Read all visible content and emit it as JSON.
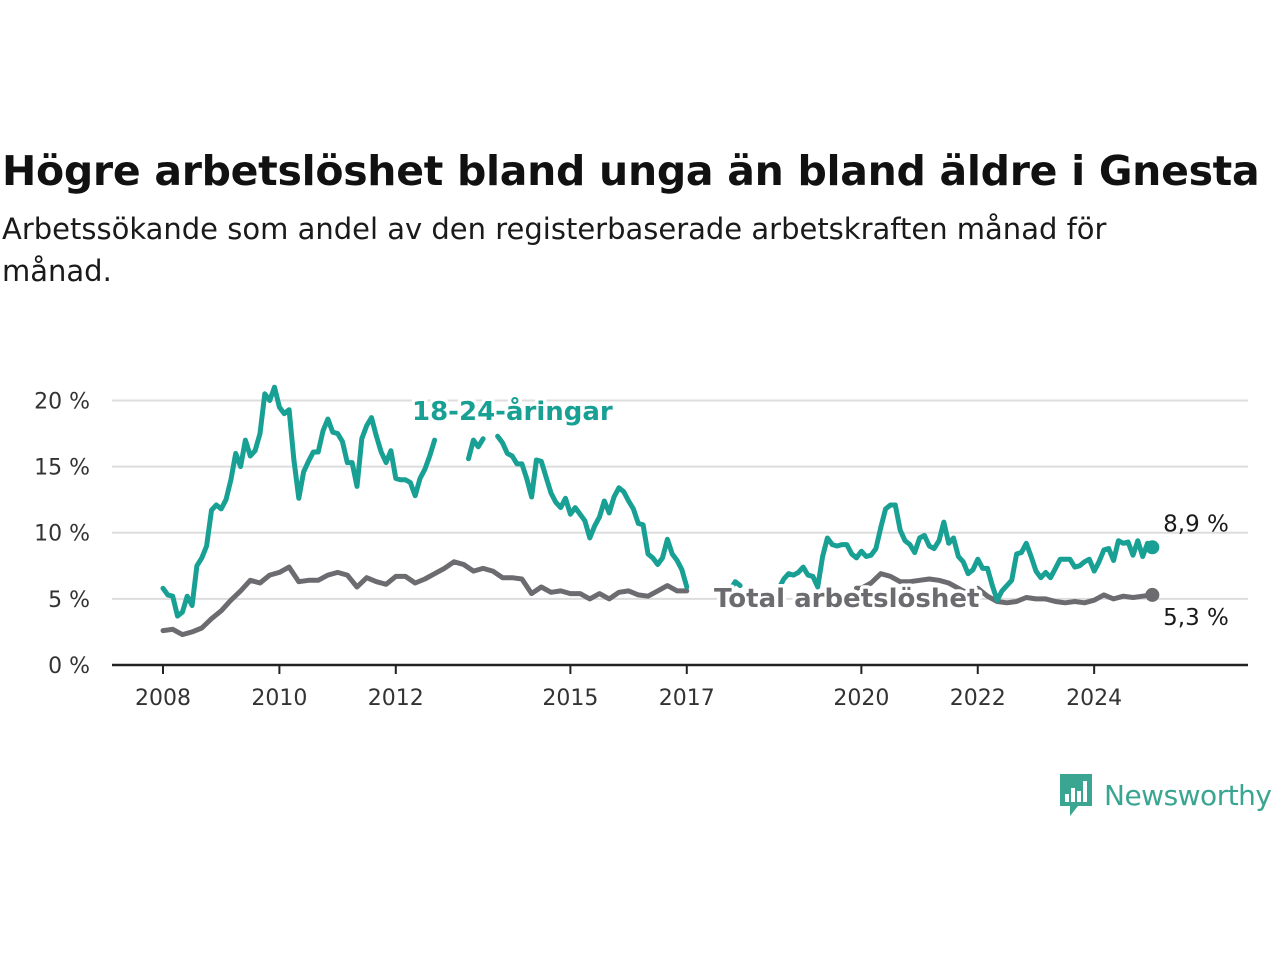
{
  "title": "Högre arbetslöshet bland unga än bland äldre i Gnesta",
  "subtitle": "Arbetssökande som andel av den registerbaserade arbetskraften månad för månad.",
  "brand": {
    "name": "Newsworthy",
    "logo_icon": "bar-chart-speech-bubble-icon"
  },
  "colors": {
    "youth": "#17a093",
    "total": "#6c6b6f",
    "grid": "#dddddd",
    "axis": "#222222",
    "brand": "#3aa591"
  },
  "chart_data": {
    "type": "line",
    "x_axis": {
      "min": "2008-01",
      "max": "2025-10",
      "ticks": [
        "2008",
        "2010",
        "2012",
        "2015",
        "2017",
        "2020",
        "2022",
        "2024"
      ]
    },
    "y_axis": {
      "min": 0,
      "max": 22,
      "ticks": [
        0,
        5,
        10,
        15,
        20
      ],
      "tick_labels": [
        "0 %",
        "5 %",
        "10 %",
        "15 %",
        "20 %"
      ]
    },
    "grid": true,
    "series": [
      {
        "name": "18-24-åringar",
        "color": "#17a093",
        "end_label": "8,9 %",
        "points": [
          [
            "2008-01",
            5.8
          ],
          [
            "2008-02",
            5.3
          ],
          [
            "2008-03",
            5.2
          ],
          [
            "2008-04",
            3.7
          ],
          [
            "2008-05",
            4.0
          ],
          [
            "2008-06",
            5.2
          ],
          [
            "2008-07",
            4.5
          ],
          [
            "2008-08",
            7.5
          ],
          [
            "2008-09",
            8.1
          ],
          [
            "2008-10",
            9.0
          ],
          [
            "2008-11",
            11.7
          ],
          [
            "2008-12",
            12.1
          ],
          [
            "2009-01",
            11.8
          ],
          [
            "2009-02",
            12.5
          ],
          [
            "2009-03",
            14.0
          ],
          [
            "2009-04",
            16.0
          ],
          [
            "2009-05",
            15.0
          ],
          [
            "2009-06",
            17.0
          ],
          [
            "2009-07",
            15.8
          ],
          [
            "2009-08",
            16.2
          ],
          [
            "2009-09",
            17.5
          ],
          [
            "2009-10",
            20.5
          ],
          [
            "2009-11",
            20.0
          ],
          [
            "2009-12",
            21.0
          ],
          [
            "2010-01",
            19.5
          ],
          [
            "2010-02",
            19.0
          ],
          [
            "2010-03",
            19.3
          ],
          [
            "2010-04",
            15.5
          ],
          [
            "2010-05",
            12.6
          ],
          [
            "2010-06",
            14.6
          ],
          [
            "2010-07",
            15.4
          ],
          [
            "2010-08",
            16.1
          ],
          [
            "2010-09",
            16.1
          ],
          [
            "2010-10",
            17.7
          ],
          [
            "2010-11",
            18.6
          ],
          [
            "2010-12",
            17.6
          ],
          [
            "2011-01",
            17.5
          ],
          [
            "2011-02",
            16.9
          ],
          [
            "2011-03",
            15.3
          ],
          [
            "2011-04",
            15.3
          ],
          [
            "2011-05",
            13.5
          ],
          [
            "2011-06",
            17.1
          ],
          [
            "2011-07",
            18.1
          ],
          [
            "2011-08",
            18.7
          ],
          [
            "2011-09",
            17.3
          ],
          [
            "2011-10",
            16.1
          ],
          [
            "2011-11",
            15.3
          ],
          [
            "2011-12",
            16.2
          ],
          [
            "2012-01",
            14.1
          ],
          [
            "2012-02",
            14.0
          ],
          [
            "2012-03",
            14.0
          ],
          [
            "2012-04",
            13.8
          ],
          [
            "2012-05",
            12.8
          ],
          [
            "2012-06",
            14.1
          ],
          [
            "2012-07",
            14.8
          ],
          [
            "2012-08",
            15.8
          ],
          [
            "2012-09",
            17.0
          ],
          null,
          [
            "2013-04",
            15.6
          ],
          [
            "2013-05",
            17.0
          ],
          [
            "2013-06",
            16.5
          ],
          [
            "2013-07",
            17.1
          ],
          null,
          [
            "2013-10",
            17.3
          ],
          [
            "2013-11",
            16.8
          ],
          [
            "2013-12",
            16.0
          ],
          [
            "2014-01",
            15.8
          ],
          [
            "2014-02",
            15.2
          ],
          [
            "2014-03",
            15.2
          ],
          [
            "2014-04",
            14.1
          ],
          [
            "2014-05",
            12.7
          ],
          [
            "2014-06",
            15.5
          ],
          [
            "2014-07",
            15.4
          ],
          [
            "2014-08",
            14.2
          ],
          [
            "2014-09",
            13.0
          ],
          [
            "2014-10",
            12.3
          ],
          [
            "2014-11",
            11.9
          ],
          [
            "2014-12",
            12.6
          ],
          [
            "2015-01",
            11.4
          ],
          [
            "2015-02",
            11.9
          ],
          [
            "2015-03",
            11.4
          ],
          [
            "2015-04",
            10.9
          ],
          [
            "2015-05",
            9.6
          ],
          [
            "2015-06",
            10.5
          ],
          [
            "2015-07",
            11.2
          ],
          [
            "2015-08",
            12.4
          ],
          [
            "2015-09",
            11.5
          ],
          [
            "2015-10",
            12.7
          ],
          [
            "2015-11",
            13.4
          ],
          [
            "2015-12",
            13.1
          ],
          [
            "2016-01",
            12.4
          ],
          [
            "2016-02",
            11.8
          ],
          [
            "2016-03",
            10.7
          ],
          [
            "2016-04",
            10.6
          ],
          [
            "2016-05",
            8.4
          ],
          [
            "2016-06",
            8.1
          ],
          [
            "2016-07",
            7.6
          ],
          [
            "2016-08",
            8.1
          ],
          [
            "2016-09",
            9.5
          ],
          [
            "2016-10",
            8.4
          ],
          [
            "2016-11",
            7.9
          ],
          [
            "2016-12",
            7.2
          ],
          [
            "2017-01",
            5.9
          ],
          null,
          [
            "2017-10",
            5.7
          ],
          [
            "2017-11",
            6.3
          ],
          [
            "2017-12",
            6.0
          ],
          null,
          [
            "2018-08",
            5.8
          ],
          [
            "2018-09",
            6.5
          ],
          [
            "2018-10",
            6.9
          ],
          [
            "2018-11",
            6.8
          ],
          [
            "2018-12",
            7.0
          ],
          [
            "2019-01",
            7.4
          ],
          [
            "2019-02",
            6.8
          ],
          [
            "2019-03",
            6.7
          ],
          [
            "2019-04",
            5.9
          ],
          [
            "2019-05",
            8.2
          ],
          [
            "2019-06",
            9.6
          ],
          [
            "2019-07",
            9.1
          ],
          [
            "2019-08",
            9.0
          ],
          [
            "2019-09",
            9.1
          ],
          [
            "2019-10",
            9.1
          ],
          [
            "2019-11",
            8.4
          ],
          [
            "2019-12",
            8.1
          ],
          [
            "2020-01",
            8.6
          ],
          [
            "2020-02",
            8.2
          ],
          [
            "2020-03",
            8.3
          ],
          [
            "2020-04",
            8.8
          ],
          [
            "2020-05",
            10.4
          ],
          [
            "2020-06",
            11.8
          ],
          [
            "2020-07",
            12.1
          ],
          [
            "2020-08",
            12.1
          ],
          [
            "2020-09",
            10.2
          ],
          [
            "2020-10",
            9.4
          ],
          [
            "2020-11",
            9.1
          ],
          [
            "2020-12",
            8.5
          ],
          [
            "2021-01",
            9.6
          ],
          [
            "2021-02",
            9.8
          ],
          [
            "2021-03",
            9.0
          ],
          [
            "2021-04",
            8.8
          ],
          [
            "2021-05",
            9.4
          ],
          [
            "2021-06",
            10.8
          ],
          [
            "2021-07",
            9.2
          ],
          [
            "2021-08",
            9.6
          ],
          [
            "2021-09",
            8.2
          ],
          [
            "2021-10",
            7.8
          ],
          [
            "2021-11",
            6.9
          ],
          [
            "2021-12",
            7.2
          ],
          [
            "2022-01",
            8.0
          ],
          [
            "2022-02",
            7.3
          ],
          [
            "2022-03",
            7.3
          ],
          [
            "2022-04",
            6.0
          ],
          [
            "2022-05",
            4.9
          ],
          [
            "2022-06",
            5.6
          ],
          [
            "2022-07",
            6.0
          ],
          [
            "2022-08",
            6.4
          ],
          [
            "2022-09",
            8.4
          ],
          [
            "2022-10",
            8.5
          ],
          [
            "2022-11",
            9.2
          ],
          [
            "2022-12",
            8.2
          ],
          [
            "2023-01",
            7.1
          ],
          [
            "2023-02",
            6.6
          ],
          [
            "2023-03",
            7.0
          ],
          [
            "2023-04",
            6.6
          ],
          [
            "2023-05",
            7.3
          ],
          [
            "2023-06",
            8.0
          ],
          [
            "2023-07",
            8.0
          ],
          [
            "2023-08",
            8.0
          ],
          [
            "2023-09",
            7.4
          ],
          [
            "2023-10",
            7.5
          ],
          [
            "2023-11",
            7.8
          ],
          [
            "2023-12",
            8.0
          ],
          [
            "2024-01",
            7.1
          ],
          [
            "2024-02",
            7.8
          ],
          [
            "2024-03",
            8.7
          ],
          [
            "2024-04",
            8.8
          ],
          [
            "2024-05",
            7.9
          ],
          [
            "2024-06",
            9.4
          ],
          [
            "2024-07",
            9.2
          ],
          [
            "2024-08",
            9.3
          ],
          [
            "2024-09",
            8.3
          ],
          [
            "2024-10",
            9.4
          ],
          [
            "2024-11",
            8.2
          ],
          [
            "2024-12",
            9.2
          ],
          [
            "2025-01",
            8.9
          ]
        ]
      },
      {
        "name": "Total arbetslöshet",
        "color": "#6c6b6f",
        "end_label": "5,3 %",
        "points": [
          [
            "2008-01",
            2.6
          ],
          [
            "2008-03",
            2.7
          ],
          [
            "2008-05",
            2.3
          ],
          [
            "2008-07",
            2.5
          ],
          [
            "2008-09",
            2.8
          ],
          [
            "2008-11",
            3.5
          ],
          [
            "2009-01",
            4.1
          ],
          [
            "2009-03",
            4.9
          ],
          [
            "2009-05",
            5.6
          ],
          [
            "2009-07",
            6.4
          ],
          [
            "2009-09",
            6.2
          ],
          [
            "2009-11",
            6.8
          ],
          [
            "2010-01",
            7.0
          ],
          [
            "2010-03",
            7.4
          ],
          [
            "2010-05",
            6.3
          ],
          [
            "2010-07",
            6.4
          ],
          [
            "2010-09",
            6.4
          ],
          [
            "2010-11",
            6.8
          ],
          [
            "2011-01",
            7.0
          ],
          [
            "2011-03",
            6.8
          ],
          [
            "2011-05",
            5.9
          ],
          [
            "2011-07",
            6.6
          ],
          [
            "2011-09",
            6.3
          ],
          [
            "2011-11",
            6.1
          ],
          [
            "2012-01",
            6.7
          ],
          [
            "2012-03",
            6.7
          ],
          [
            "2012-05",
            6.2
          ],
          [
            "2012-07",
            6.5
          ],
          [
            "2012-09",
            6.9
          ],
          [
            "2012-11",
            7.3
          ],
          [
            "2013-01",
            7.8
          ],
          [
            "2013-03",
            7.6
          ],
          [
            "2013-05",
            7.1
          ],
          [
            "2013-07",
            7.3
          ],
          [
            "2013-09",
            7.1
          ],
          [
            "2013-11",
            6.6
          ],
          [
            "2014-01",
            6.6
          ],
          [
            "2014-03",
            6.5
          ],
          [
            "2014-05",
            5.4
          ],
          [
            "2014-07",
            5.9
          ],
          [
            "2014-09",
            5.5
          ],
          [
            "2014-11",
            5.6
          ],
          [
            "2015-01",
            5.4
          ],
          [
            "2015-03",
            5.4
          ],
          [
            "2015-05",
            5.0
          ],
          [
            "2015-07",
            5.4
          ],
          [
            "2015-09",
            5.0
          ],
          [
            "2015-11",
            5.5
          ],
          [
            "2016-01",
            5.6
          ],
          [
            "2016-03",
            5.3
          ],
          [
            "2016-05",
            5.2
          ],
          [
            "2016-07",
            5.6
          ],
          [
            "2016-09",
            6.0
          ],
          [
            "2016-11",
            5.6
          ],
          [
            "2017-01",
            5.6
          ],
          null,
          [
            "2019-12",
            5.8
          ],
          [
            "2020-01",
            5.8
          ],
          [
            "2020-03",
            6.2
          ],
          [
            "2020-05",
            6.9
          ],
          [
            "2020-07",
            6.7
          ],
          [
            "2020-09",
            6.3
          ],
          [
            "2020-11",
            6.3
          ],
          [
            "2021-01",
            6.4
          ],
          [
            "2021-03",
            6.5
          ],
          [
            "2021-05",
            6.4
          ],
          [
            "2021-07",
            6.2
          ],
          [
            "2021-09",
            5.8
          ],
          [
            "2021-11",
            5.4
          ],
          [
            "2022-01",
            5.8
          ],
          [
            "2022-03",
            5.2
          ],
          [
            "2022-05",
            4.8
          ],
          [
            "2022-07",
            4.7
          ],
          [
            "2022-09",
            4.8
          ],
          [
            "2022-11",
            5.1
          ],
          [
            "2023-01",
            5.0
          ],
          [
            "2023-03",
            5.0
          ],
          [
            "2023-05",
            4.8
          ],
          [
            "2023-07",
            4.7
          ],
          [
            "2023-09",
            4.8
          ],
          [
            "2023-11",
            4.7
          ],
          [
            "2024-01",
            4.9
          ],
          [
            "2024-03",
            5.3
          ],
          [
            "2024-05",
            5.0
          ],
          [
            "2024-07",
            5.2
          ],
          [
            "2024-09",
            5.1
          ],
          [
            "2024-11",
            5.2
          ],
          [
            "2025-01",
            5.3
          ]
        ]
      }
    ]
  }
}
